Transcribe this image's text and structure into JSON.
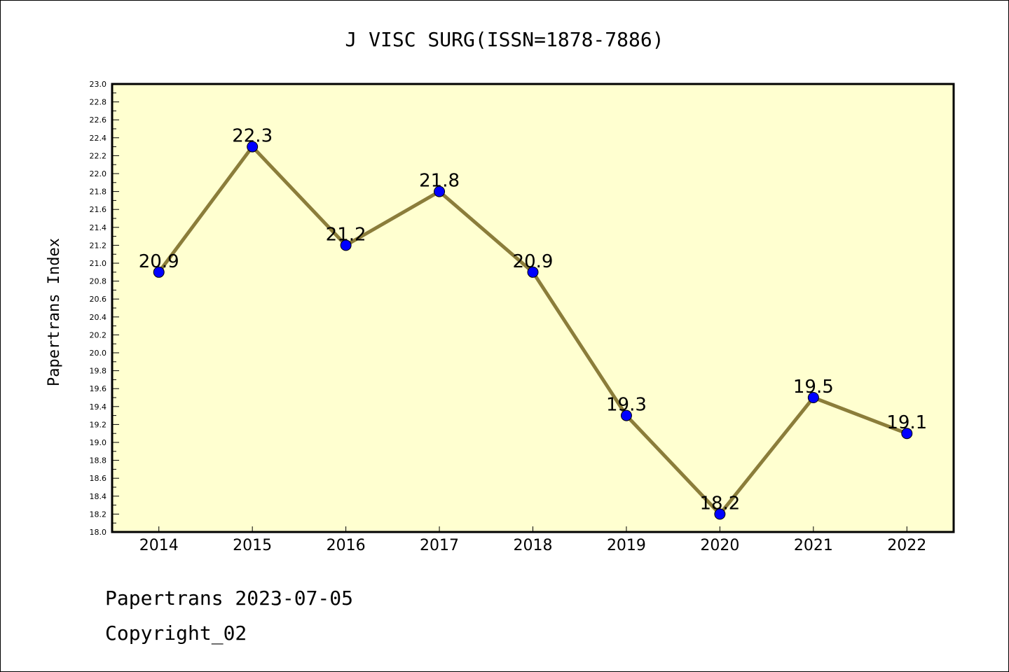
{
  "chart_data": {
    "type": "line",
    "title": "J VISC SURG(ISSN=1878-7886)",
    "xlabel": "",
    "ylabel": "Papertrans Index",
    "categories": [
      "2014",
      "2015",
      "2016",
      "2017",
      "2018",
      "2019",
      "2020",
      "2021",
      "2022"
    ],
    "values": [
      20.9,
      22.3,
      21.2,
      21.8,
      20.9,
      19.3,
      18.2,
      19.5,
      19.1
    ],
    "data_labels": [
      "20.9",
      "22.3",
      "21.2",
      "21.8",
      "20.9",
      "19.3",
      "18.2",
      "19.5",
      "19.1"
    ],
    "ylim": [
      18.0,
      23.0
    ],
    "yticks": [
      "18.0",
      "18.2",
      "18.4",
      "18.6",
      "18.8",
      "19.0",
      "19.2",
      "19.4",
      "19.6",
      "19.8",
      "20.0",
      "20.2",
      "20.4",
      "20.6",
      "20.8",
      "21.0",
      "21.2",
      "21.4",
      "21.6",
      "21.8",
      "22.0",
      "22.2",
      "22.4",
      "22.6",
      "22.8",
      "23.0"
    ],
    "grid": false,
    "legend": "none",
    "colors": {
      "line": "#8b7d3a",
      "marker": "#0000ff",
      "plot_bg": "#ffffd0"
    }
  },
  "footer": {
    "line1": "Papertrans 2023-07-05",
    "line2": "Copyright_02"
  }
}
